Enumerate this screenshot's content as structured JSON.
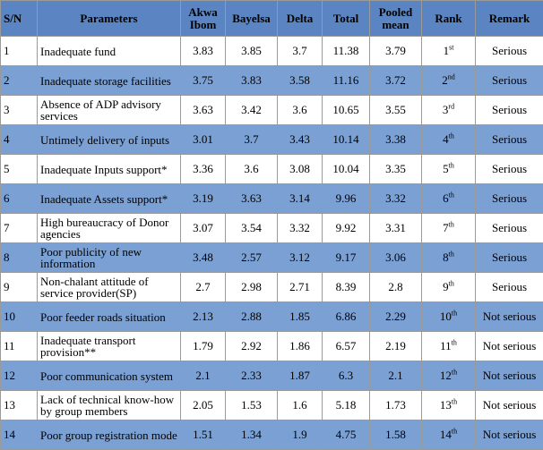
{
  "headers": {
    "sn": "S/N",
    "parameters": "Parameters",
    "akwa_ibom": "Akwa Ibom",
    "bayelsa": "Bayelsa",
    "delta": "Delta",
    "total": "Total",
    "pooled_mean": "Pooled mean",
    "rank": "Rank",
    "remark": "Remark"
  },
  "rows": [
    {
      "sn": "1",
      "parameter": "Inadequate fund",
      "akwa_ibom": "3.83",
      "bayelsa": "3.85",
      "delta": "3.7",
      "total": "11.38",
      "pooled_mean": "3.79",
      "rank_num": "1",
      "rank_suffix": "st",
      "remark": "Serious"
    },
    {
      "sn": "2",
      "parameter": "Inadequate storage facilities",
      "akwa_ibom": "3.75",
      "bayelsa": "3.83",
      "delta": "3.58",
      "total": "11.16",
      "pooled_mean": "3.72",
      "rank_num": "2",
      "rank_suffix": "nd",
      "remark": "Serious"
    },
    {
      "sn": "3",
      "parameter": "Absence of ADP advisory services",
      "akwa_ibom": "3.63",
      "bayelsa": "3.42",
      "delta": "3.6",
      "total": "10.65",
      "pooled_mean": "3.55",
      "rank_num": "3",
      "rank_suffix": "rd",
      "remark": "Serious"
    },
    {
      "sn": "4",
      "parameter": "Untimely delivery of inputs",
      "akwa_ibom": "3.01",
      "bayelsa": "3.7",
      "delta": "3.43",
      "total": "10.14",
      "pooled_mean": "3.38",
      "rank_num": "4",
      "rank_suffix": "th",
      "remark": "Serious"
    },
    {
      "sn": "5",
      "parameter": "Inadequate Inputs support*",
      "akwa_ibom": "3.36",
      "bayelsa": "3.6",
      "delta": "3.08",
      "total": "10.04",
      "pooled_mean": "3.35",
      "rank_num": "5",
      "rank_suffix": "th",
      "remark": "Serious"
    },
    {
      "sn": "6",
      "parameter": "Inadequate Assets support*",
      "akwa_ibom": "3.19",
      "bayelsa": "3.63",
      "delta": "3.14",
      "total": "9.96",
      "pooled_mean": "3.32",
      "rank_num": "6",
      "rank_suffix": "th",
      "remark": "Serious"
    },
    {
      "sn": "7",
      "parameter": "High bureaucracy of Donor agencies",
      "akwa_ibom": "3.07",
      "bayelsa": "3.54",
      "delta": "3.32",
      "total": "9.92",
      "pooled_mean": "3.31",
      "rank_num": "7",
      "rank_suffix": "th",
      "remark": "Serious"
    },
    {
      "sn": "8",
      "parameter": "Poor publicity of new information",
      "akwa_ibom": "3.48",
      "bayelsa": "2.57",
      "delta": "3.12",
      "total": "9.17",
      "pooled_mean": "3.06",
      "rank_num": "8",
      "rank_suffix": "th",
      "remark": "Serious"
    },
    {
      "sn": "9",
      "parameter": "Non-chalant attitude of service provider(SP)",
      "akwa_ibom": "2.7",
      "bayelsa": "2.98",
      "delta": "2.71",
      "total": "8.39",
      "pooled_mean": "2.8",
      "rank_num": "9",
      "rank_suffix": "th",
      "remark": "Serious"
    },
    {
      "sn": "10",
      "parameter": "Poor feeder roads situation",
      "akwa_ibom": "2.13",
      "bayelsa": "2.88",
      "delta": "1.85",
      "total": "6.86",
      "pooled_mean": "2.29",
      "rank_num": "10",
      "rank_suffix": "th",
      "remark": "Not serious"
    },
    {
      "sn": "11",
      "parameter": "Inadequate transport provision**",
      "akwa_ibom": "1.79",
      "bayelsa": "2.92",
      "delta": "1.86",
      "total": "6.57",
      "pooled_mean": "2.19",
      "rank_num": "11",
      "rank_suffix": "th",
      "remark": "Not serious"
    },
    {
      "sn": "12",
      "parameter": "Poor communication system",
      "akwa_ibom": "2.1",
      "bayelsa": "2.33",
      "delta": "1.87",
      "total": "6.3",
      "pooled_mean": "2.1",
      "rank_num": "12",
      "rank_suffix": "th",
      "remark": "Not serious"
    },
    {
      "sn": "13",
      "parameter": "Lack of technical know-how by group members",
      "akwa_ibom": "2.05",
      "bayelsa": "1.53",
      "delta": "1.6",
      "total": "5.18",
      "pooled_mean": "1.73",
      "rank_num": "13",
      "rank_suffix": "th",
      "remark": "Not serious"
    },
    {
      "sn": "14",
      "parameter": "Poor group registration mode",
      "akwa_ibom": "1.51",
      "bayelsa": "1.34",
      "delta": "1.9",
      "total": "4.75",
      "pooled_mean": "1.58",
      "rank_num": "14",
      "rank_suffix": "th",
      "remark": "Not serious"
    }
  ],
  "colors": {
    "header_bg": "#5a85c2",
    "stripe_bg": "#7aa0d4",
    "plain_bg": "#ffffff",
    "border": "#9a9a9a"
  }
}
